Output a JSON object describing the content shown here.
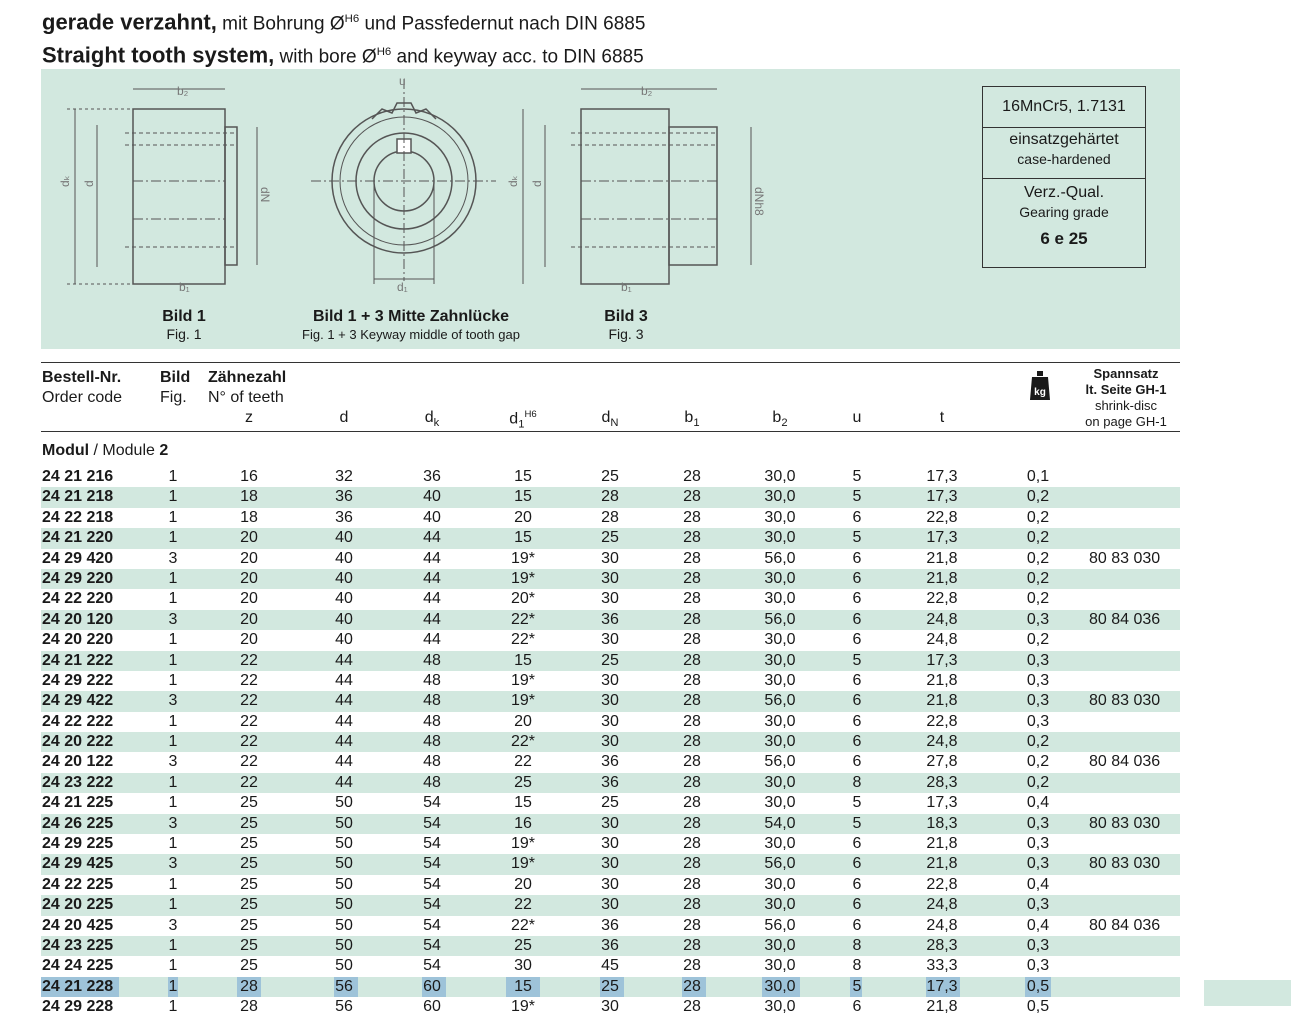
{
  "heading": {
    "de_title": "gerade verzahnt,",
    "de_rest_1": " mit Bohrung Ø",
    "de_sup": "H6",
    "de_rest_2": " und Passfedernut nach DIN 6885",
    "en_title": "Straight tooth system,",
    "en_rest_1": " with bore Ø",
    "en_sup": "H6",
    "en_rest_2": " and keyway acc. to DIN 6885"
  },
  "figures": {
    "fig1_de": "Bild 1",
    "fig1_en": "Fig. 1",
    "mid_de": "Bild 1 + 3 Mitte Zahnlücke",
    "mid_en": "Fig. 1 + 3 Keyway middle of tooth gap",
    "fig3_de": "Bild 3",
    "fig3_en": "Fig. 3",
    "dim_labels": {
      "b2": "b2",
      "b1": "b1",
      "dk": "dk",
      "d": "d",
      "dN": "dN",
      "d1": "d1",
      "u": "u",
      "dNh8": "dNh8"
    }
  },
  "material": {
    "steel": "16MnCr5, 1.7131",
    "hardened_de": "einsatzgehärtet",
    "hardened_en": "case-hardened",
    "quality_de": "Verz.-Qual.",
    "quality_en": "Gearing grade",
    "grade": "6 e 25"
  },
  "table_header": {
    "order_de": "Bestell-Nr.",
    "order_en": "Order code",
    "fig_de": "Bild",
    "fig_en": "Fig.",
    "teeth_de": "Zähnezahl",
    "teeth_en": "N° of teeth",
    "z": "z",
    "d": "d",
    "dk_main": "d",
    "dk_sub": "k",
    "d1_main": "d",
    "d1_sub": "1",
    "d1_sup": "H6",
    "dN_main": "d",
    "dN_sub": "N",
    "b1_main": "b",
    "b1_sub": "1",
    "b2_main": "b",
    "b2_sub": "2",
    "u": "u",
    "t": "t",
    "weight_icon_label": "kg",
    "spannsatz_1": "Spannsatz",
    "spannsatz_2": "lt. Seite GH-1",
    "spannsatz_3": "shrink-disc",
    "spannsatz_4": "on page GH-1"
  },
  "module": {
    "label_de": "Modul",
    "sep": " / Module ",
    "value": "2"
  },
  "rows": [
    {
      "code": "24 21 216",
      "fig": "1",
      "z": "16",
      "d": "32",
      "dk": "36",
      "d1": "15",
      "dN": "25",
      "b1": "28",
      "b2": "30,0",
      "u": "5",
      "t": "17,3",
      "kg": "0,1",
      "shrink": ""
    },
    {
      "code": "24 21 218",
      "fig": "1",
      "z": "18",
      "d": "36",
      "dk": "40",
      "d1": "15",
      "dN": "28",
      "b1": "28",
      "b2": "30,0",
      "u": "5",
      "t": "17,3",
      "kg": "0,2",
      "shrink": ""
    },
    {
      "code": "24 22 218",
      "fig": "1",
      "z": "18",
      "d": "36",
      "dk": "40",
      "d1": "20",
      "dN": "28",
      "b1": "28",
      "b2": "30,0",
      "u": "6",
      "t": "22,8",
      "kg": "0,2",
      "shrink": ""
    },
    {
      "code": "24 21 220",
      "fig": "1",
      "z": "20",
      "d": "40",
      "dk": "44",
      "d1": "15",
      "dN": "25",
      "b1": "28",
      "b2": "30,0",
      "u": "5",
      "t": "17,3",
      "kg": "0,2",
      "shrink": ""
    },
    {
      "code": "24 29 420",
      "fig": "3",
      "z": "20",
      "d": "40",
      "dk": "44",
      "d1": "19*",
      "dN": "30",
      "b1": "28",
      "b2": "56,0",
      "u": "6",
      "t": "21,8",
      "kg": "0,2",
      "shrink": "80 83 030"
    },
    {
      "code": "24 29 220",
      "fig": "1",
      "z": "20",
      "d": "40",
      "dk": "44",
      "d1": "19*",
      "dN": "30",
      "b1": "28",
      "b2": "30,0",
      "u": "6",
      "t": "21,8",
      "kg": "0,2",
      "shrink": ""
    },
    {
      "code": "24 22 220",
      "fig": "1",
      "z": "20",
      "d": "40",
      "dk": "44",
      "d1": "20*",
      "dN": "30",
      "b1": "28",
      "b2": "30,0",
      "u": "6",
      "t": "22,8",
      "kg": "0,2",
      "shrink": ""
    },
    {
      "code": "24 20 120",
      "fig": "3",
      "z": "20",
      "d": "40",
      "dk": "44",
      "d1": "22*",
      "dN": "36",
      "b1": "28",
      "b2": "56,0",
      "u": "6",
      "t": "24,8",
      "kg": "0,3",
      "shrink": "80 84 036"
    },
    {
      "code": "24 20 220",
      "fig": "1",
      "z": "20",
      "d": "40",
      "dk": "44",
      "d1": "22*",
      "dN": "30",
      "b1": "28",
      "b2": "30,0",
      "u": "6",
      "t": "24,8",
      "kg": "0,2",
      "shrink": ""
    },
    {
      "code": "24 21 222",
      "fig": "1",
      "z": "22",
      "d": "44",
      "dk": "48",
      "d1": "15",
      "dN": "25",
      "b1": "28",
      "b2": "30,0",
      "u": "5",
      "t": "17,3",
      "kg": "0,3",
      "shrink": ""
    },
    {
      "code": "24 29 222",
      "fig": "1",
      "z": "22",
      "d": "44",
      "dk": "48",
      "d1": "19*",
      "dN": "30",
      "b1": "28",
      "b2": "30,0",
      "u": "6",
      "t": "21,8",
      "kg": "0,3",
      "shrink": ""
    },
    {
      "code": "24 29 422",
      "fig": "3",
      "z": "22",
      "d": "44",
      "dk": "48",
      "d1": "19*",
      "dN": "30",
      "b1": "28",
      "b2": "56,0",
      "u": "6",
      "t": "21,8",
      "kg": "0,3",
      "shrink": "80 83 030"
    },
    {
      "code": "24 22 222",
      "fig": "1",
      "z": "22",
      "d": "44",
      "dk": "48",
      "d1": "20",
      "dN": "30",
      "b1": "28",
      "b2": "30,0",
      "u": "6",
      "t": "22,8",
      "kg": "0,3",
      "shrink": ""
    },
    {
      "code": "24 20 222",
      "fig": "1",
      "z": "22",
      "d": "44",
      "dk": "48",
      "d1": "22*",
      "dN": "30",
      "b1": "28",
      "b2": "30,0",
      "u": "6",
      "t": "24,8",
      "kg": "0,2",
      "shrink": ""
    },
    {
      "code": "24 20 122",
      "fig": "3",
      "z": "22",
      "d": "44",
      "dk": "48",
      "d1": "22",
      "dN": "36",
      "b1": "28",
      "b2": "56,0",
      "u": "6",
      "t": "27,8",
      "kg": "0,2",
      "shrink": "80 84 036"
    },
    {
      "code": "24 23 222",
      "fig": "1",
      "z": "22",
      "d": "44",
      "dk": "48",
      "d1": "25",
      "dN": "36",
      "b1": "28",
      "b2": "30,0",
      "u": "8",
      "t": "28,3",
      "kg": "0,2",
      "shrink": ""
    },
    {
      "code": "24 21 225",
      "fig": "1",
      "z": "25",
      "d": "50",
      "dk": "54",
      "d1": "15",
      "dN": "25",
      "b1": "28",
      "b2": "30,0",
      "u": "5",
      "t": "17,3",
      "kg": "0,4",
      "shrink": ""
    },
    {
      "code": "24 26 225",
      "fig": "3",
      "z": "25",
      "d": "50",
      "dk": "54",
      "d1": "16",
      "dN": "30",
      "b1": "28",
      "b2": "54,0",
      "u": "5",
      "t": "18,3",
      "kg": "0,3",
      "shrink": "80 83 030"
    },
    {
      "code": "24 29 225",
      "fig": "1",
      "z": "25",
      "d": "50",
      "dk": "54",
      "d1": "19*",
      "dN": "30",
      "b1": "28",
      "b2": "30,0",
      "u": "6",
      "t": "21,8",
      "kg": "0,3",
      "shrink": ""
    },
    {
      "code": "24 29 425",
      "fig": "3",
      "z": "25",
      "d": "50",
      "dk": "54",
      "d1": "19*",
      "dN": "30",
      "b1": "28",
      "b2": "56,0",
      "u": "6",
      "t": "21,8",
      "kg": "0,3",
      "shrink": "80 83 030"
    },
    {
      "code": "24 22 225",
      "fig": "1",
      "z": "25",
      "d": "50",
      "dk": "54",
      "d1": "20",
      "dN": "30",
      "b1": "28",
      "b2": "30,0",
      "u": "6",
      "t": "22,8",
      "kg": "0,4",
      "shrink": ""
    },
    {
      "code": "24 20 225",
      "fig": "1",
      "z": "25",
      "d": "50",
      "dk": "54",
      "d1": "22",
      "dN": "30",
      "b1": "28",
      "b2": "30,0",
      "u": "6",
      "t": "24,8",
      "kg": "0,3",
      "shrink": ""
    },
    {
      "code": "24 20 425",
      "fig": "3",
      "z": "25",
      "d": "50",
      "dk": "54",
      "d1": "22*",
      "dN": "36",
      "b1": "28",
      "b2": "56,0",
      "u": "6",
      "t": "24,8",
      "kg": "0,4",
      "shrink": "80 84 036"
    },
    {
      "code": "24 23 225",
      "fig": "1",
      "z": "25",
      "d": "50",
      "dk": "54",
      "d1": "25",
      "dN": "36",
      "b1": "28",
      "b2": "30,0",
      "u": "8",
      "t": "28,3",
      "kg": "0,3",
      "shrink": ""
    },
    {
      "code": "24 24 225",
      "fig": "1",
      "z": "25",
      "d": "50",
      "dk": "54",
      "d1": "30",
      "dN": "45",
      "b1": "28",
      "b2": "30,0",
      "u": "8",
      "t": "33,3",
      "kg": "0,3",
      "shrink": ""
    },
    {
      "code": "24 21 228",
      "fig": "1",
      "z": "28",
      "d": "56",
      "dk": "60",
      "d1": "15",
      "dN": "25",
      "b1": "28",
      "b2": "30,0",
      "u": "5",
      "t": "17,3",
      "kg": "0,5",
      "shrink": "",
      "selected": true
    },
    {
      "code": "24 29 228",
      "fig": "1",
      "z": "28",
      "d": "56",
      "dk": "60",
      "d1": "19*",
      "dN": "30",
      "b1": "28",
      "b2": "30,0",
      "u": "6",
      "t": "21,8",
      "kg": "0,5",
      "shrink": ""
    }
  ]
}
